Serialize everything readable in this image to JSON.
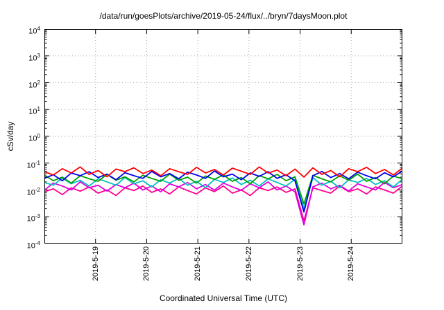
{
  "chart_data": {
    "type": "line",
    "title": "/data/run/goesPlots/archive/2019-05-24/flux/../bryn/7daysMoon.plot",
    "xlabel": "Coordinated Universal Time (UTC)",
    "ylabel": "cSv/day",
    "y_scale": "log",
    "ylim": [
      0.0001,
      10000
    ],
    "x_range_days": [
      0,
      7
    ],
    "grid": true,
    "grid_color": "#a8a8a8",
    "y_tick_exponents": [
      4,
      3,
      2,
      1,
      0,
      -1,
      -2,
      -3,
      -4
    ],
    "x_ticks": [
      {
        "label": "2019-5-19",
        "day": 1
      },
      {
        "label": "2019-5-20",
        "day": 2
      },
      {
        "label": "2019-5-21",
        "day": 3
      },
      {
        "label": "2019-5-22",
        "day": 4
      },
      {
        "label": "2019-5-23",
        "day": 5
      },
      {
        "label": "2019-5-24",
        "day": 6
      }
    ],
    "series": [
      {
        "name": "pink",
        "color": "#ff0090",
        "values": [
          0.0086,
          0.011,
          0.0067,
          0.012,
          0.009,
          0.013,
          0.0076,
          0.01,
          0.0062,
          0.012,
          0.0095,
          0.014,
          0.0081,
          0.011,
          0.0071,
          0.013,
          0.0095,
          0.0071,
          0.012,
          0.0086,
          0.014,
          0.0076,
          0.01,
          0.0062,
          0.012,
          0.0095,
          0.013,
          0.0081,
          0.011,
          0.0007,
          0.012,
          0.0095,
          0.0076,
          0.014,
          0.0086,
          0.011,
          0.0071,
          0.013,
          0.01,
          0.0076,
          0.014
        ]
      },
      {
        "name": "magenta",
        "color": "#e000e0",
        "values": [
          0.0098,
          0.018,
          0.014,
          0.01,
          0.02,
          0.012,
          0.015,
          0.0091,
          0.016,
          0.012,
          0.018,
          0.01,
          0.014,
          0.0085,
          0.017,
          0.013,
          0.019,
          0.011,
          0.016,
          0.0098,
          0.018,
          0.013,
          0.0098,
          0.017,
          0.012,
          0.02,
          0.01,
          0.014,
          0.0085,
          0.0005,
          0.013,
          0.018,
          0.011,
          0.015,
          0.0091,
          0.017,
          0.013,
          0.01,
          0.019,
          0.012,
          0.016
        ]
      },
      {
        "name": "cyan",
        "color": "#00bfbf",
        "values": [
          0.019,
          0.015,
          0.028,
          0.017,
          0.023,
          0.014,
          0.026,
          0.02,
          0.015,
          0.029,
          0.017,
          0.022,
          0.013,
          0.024,
          0.018,
          0.027,
          0.015,
          0.021,
          0.012,
          0.025,
          0.019,
          0.028,
          0.016,
          0.023,
          0.014,
          0.026,
          0.019,
          0.014,
          0.025,
          0.002,
          0.029,
          0.015,
          0.021,
          0.012,
          0.024,
          0.019,
          0.027,
          0.016,
          0.022,
          0.013,
          0.025
        ]
      },
      {
        "name": "green",
        "color": "#00a000",
        "values": [
          0.036,
          0.022,
          0.03,
          0.018,
          0.034,
          0.026,
          0.021,
          0.038,
          0.023,
          0.031,
          0.02,
          0.035,
          0.027,
          0.021,
          0.039,
          0.023,
          0.03,
          0.018,
          0.033,
          0.025,
          0.036,
          0.021,
          0.029,
          0.017,
          0.034,
          0.026,
          0.038,
          0.022,
          0.031,
          0.003,
          0.035,
          0.026,
          0.02,
          0.034,
          0.023,
          0.039,
          0.021,
          0.029,
          0.017,
          0.033,
          0.026
        ]
      },
      {
        "name": "blue",
        "color": "#0000ee",
        "values": [
          0.027,
          0.037,
          0.022,
          0.043,
          0.034,
          0.048,
          0.029,
          0.039,
          0.024,
          0.044,
          0.034,
          0.027,
          0.049,
          0.031,
          0.041,
          0.026,
          0.046,
          0.036,
          0.027,
          0.051,
          0.031,
          0.039,
          0.024,
          0.043,
          0.032,
          0.048,
          0.027,
          0.037,
          0.022,
          0.0015,
          0.034,
          0.049,
          0.029,
          0.041,
          0.026,
          0.046,
          0.034,
          0.026,
          0.044,
          0.031,
          0.051
        ]
      },
      {
        "name": "red",
        "color": "#ff0000",
        "values": [
          0.048,
          0.036,
          0.062,
          0.043,
          0.072,
          0.038,
          0.053,
          0.031,
          0.06,
          0.048,
          0.067,
          0.041,
          0.055,
          0.034,
          0.062,
          0.048,
          0.038,
          0.07,
          0.043,
          0.058,
          0.036,
          0.065,
          0.05,
          0.038,
          0.072,
          0.043,
          0.055,
          0.034,
          0.06,
          0.03,
          0.067,
          0.038,
          0.053,
          0.031,
          0.062,
          0.048,
          0.07,
          0.041,
          0.058,
          0.036,
          0.065
        ]
      }
    ]
  }
}
